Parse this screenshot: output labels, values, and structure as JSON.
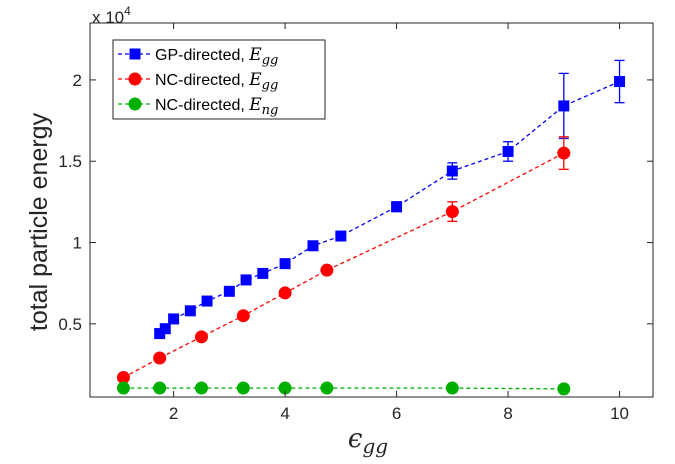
{
  "chart_data": {
    "type": "line",
    "xlabel": "ϵgg",
    "xlabel_main": "ϵ",
    "xlabel_sub": "gg",
    "ylabel": "total particle energy",
    "y_exponent_label": "x 10",
    "y_exponent_power": "4",
    "xlim": [
      0.5,
      10.6
    ],
    "ylim": [
      500,
      23500
    ],
    "x_ticks": [
      2,
      4,
      6,
      8,
      10
    ],
    "x_tick_labels": [
      "2",
      "4",
      "6",
      "8",
      "10"
    ],
    "y_ticks": [
      5000,
      10000,
      15000,
      20000
    ],
    "y_tick_labels": [
      "0.5",
      "1",
      "1.5",
      "2"
    ],
    "grid": false,
    "legend_position": "top-left",
    "series": [
      {
        "name": "GP-directed,",
        "name_math_main": "E",
        "name_math_sub": "gg",
        "color": "#0000ff",
        "marker": "square",
        "line_style": "dashed",
        "x": [
          1.75,
          1.85,
          2.0,
          2.3,
          2.6,
          3.0,
          3.3,
          3.6,
          4.0,
          4.5,
          5.0,
          6.0,
          7.0,
          8.0,
          9.0,
          10.0
        ],
        "y": [
          4400,
          4700,
          5300,
          5800,
          6400,
          7000,
          7700,
          8100,
          8700,
          9800,
          10400,
          12200,
          14400,
          15600,
          18400,
          19900
        ],
        "err": [
          0,
          0,
          0,
          0,
          0,
          0,
          0,
          0,
          0,
          0,
          0,
          300,
          500,
          600,
          2000,
          1300
        ]
      },
      {
        "name": "NC-directed,",
        "name_math_main": "E",
        "name_math_sub": "gg",
        "color": "#ff0000",
        "marker": "circle",
        "line_style": "dashed",
        "x": [
          1.1,
          1.75,
          2.5,
          3.25,
          4.0,
          4.75,
          7.0,
          9.0
        ],
        "y": [
          1700,
          2900,
          4200,
          5500,
          6900,
          8300,
          11900,
          15500
        ],
        "err": [
          0,
          0,
          0,
          0,
          0,
          0,
          600,
          1000
        ]
      },
      {
        "name": "NC-directed,",
        "name_math_main": "E",
        "name_math_sub": "ng",
        "color": "#00b000",
        "marker": "circle",
        "line_style": "dashed",
        "x": [
          1.1,
          1.75,
          2.5,
          3.25,
          4.0,
          4.75,
          7.0,
          9.0
        ],
        "y": [
          1050,
          1050,
          1050,
          1050,
          1050,
          1050,
          1050,
          1000
        ],
        "err": [
          0,
          0,
          0,
          0,
          0,
          0,
          0,
          0
        ]
      }
    ]
  }
}
